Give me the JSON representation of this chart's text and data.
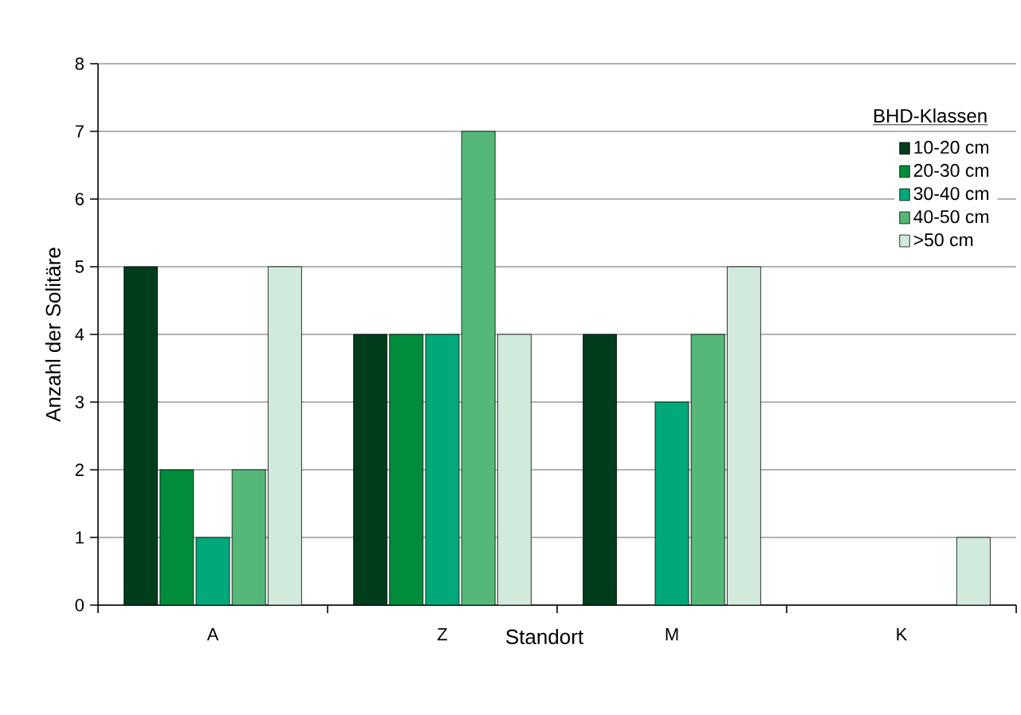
{
  "chart_data": {
    "type": "bar",
    "xlabel": "Standort",
    "ylabel": "Anzahl der Solitäre",
    "legend_title": "BHD-Klassen",
    "categories": [
      "A",
      "Z",
      "M",
      "K"
    ],
    "series": [
      {
        "name": "10-20 cm",
        "color": "#003d1c",
        "values": [
          5,
          4,
          4,
          null
        ]
      },
      {
        "name": "20-30 cm",
        "color": "#008c3c",
        "values": [
          2,
          4,
          null,
          null
        ]
      },
      {
        "name": "30-40 cm",
        "color": "#00a87a",
        "values": [
          1,
          4,
          3,
          null
        ]
      },
      {
        "name": "40-50 cm",
        "color": "#55b878",
        "values": [
          2,
          7,
          4,
          null
        ]
      },
      {
        "name": ">50 cm",
        "color": "#d2eadc",
        "values": [
          5,
          4,
          5,
          1
        ]
      }
    ],
    "ylim": [
      0,
      8
    ],
    "yticks": [
      0,
      1,
      2,
      3,
      4,
      5,
      6,
      7,
      8
    ],
    "grid": "y",
    "legend": "top right"
  }
}
